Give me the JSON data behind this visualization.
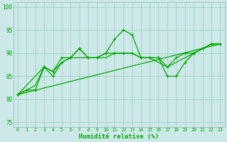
{
  "xlabel": "Humidité relative (%)",
  "bg_color": "#cce8e8",
  "grid_color": "#99ccbb",
  "line_color": "#00aa00",
  "xlim": [
    -0.5,
    23.5
  ],
  "ylim": [
    74,
    101
  ],
  "yticks": [
    75,
    80,
    85,
    90,
    95,
    100
  ],
  "xticks": [
    0,
    1,
    2,
    3,
    4,
    5,
    6,
    7,
    8,
    9,
    10,
    11,
    12,
    13,
    14,
    15,
    16,
    17,
    18,
    19,
    20,
    21,
    22,
    23
  ],
  "series1_x": [
    0,
    1,
    2,
    3,
    4,
    5,
    6,
    7,
    8,
    9,
    10,
    11,
    12,
    13,
    14,
    15,
    16,
    17,
    18,
    19,
    20,
    21,
    22,
    23
  ],
  "series1_y": [
    81,
    82,
    82,
    87,
    86,
    89,
    89,
    91,
    89,
    89,
    90,
    93,
    95,
    94,
    89,
    89,
    89,
    87,
    89,
    90,
    90,
    91,
    92,
    92
  ],
  "series2_x": [
    0,
    3,
    4,
    5,
    6,
    7,
    8,
    9,
    10,
    11,
    12,
    13,
    14,
    15,
    16,
    17,
    18,
    19,
    20,
    21,
    22,
    23
  ],
  "series2_y": [
    81,
    87,
    85,
    88,
    89,
    91,
    89,
    89,
    90,
    90,
    90,
    90,
    89,
    89,
    89,
    85,
    85,
    88,
    90,
    91,
    92,
    92
  ],
  "series3_x": [
    0,
    1,
    2,
    3,
    4,
    5,
    6,
    7,
    8,
    9,
    10,
    11,
    12,
    13,
    14,
    15,
    16,
    17,
    18,
    19,
    20,
    21,
    22,
    23
  ],
  "series3_y": [
    81,
    82,
    83,
    87,
    86,
    88,
    89,
    89,
    89,
    89,
    89,
    90,
    90,
    90,
    89,
    89,
    88,
    87,
    88,
    89,
    90,
    91,
    92,
    92
  ],
  "series4_x": [
    0,
    23
  ],
  "series4_y": [
    81,
    92
  ]
}
